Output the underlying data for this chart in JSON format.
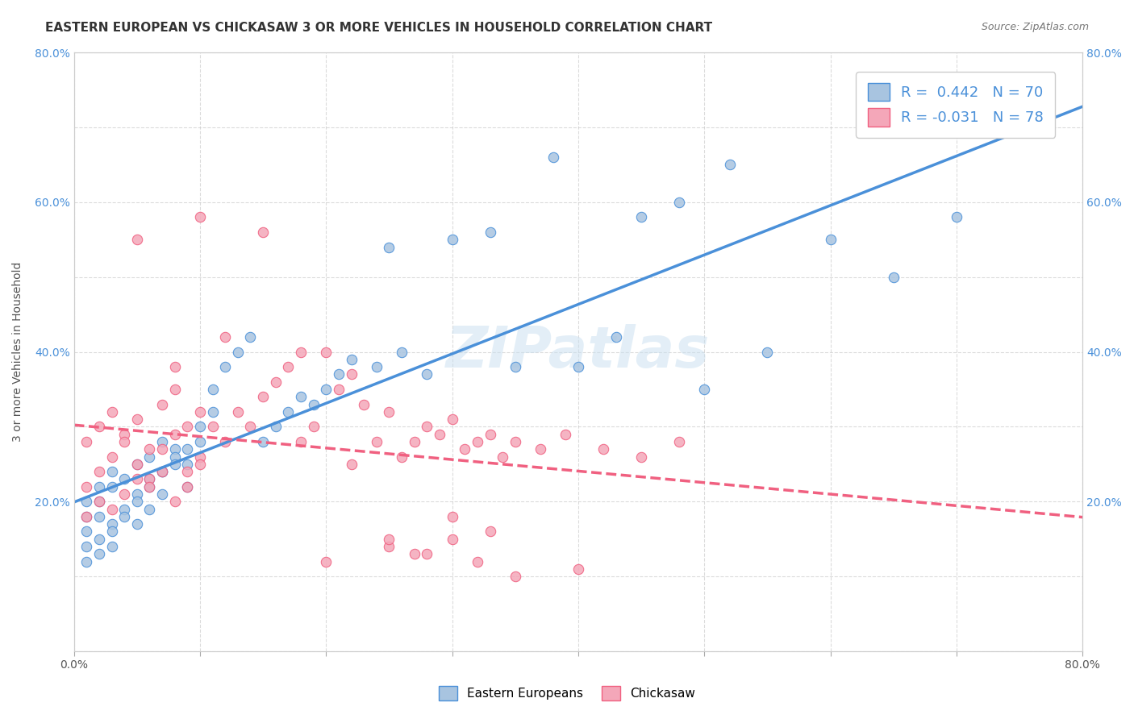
{
  "title": "EASTERN EUROPEAN VS CHICKASAW 3 OR MORE VEHICLES IN HOUSEHOLD CORRELATION CHART",
  "source": "Source: ZipAtlas.com",
  "ylabel": "3 or more Vehicles in Household",
  "watermark": "ZIPatlas",
  "legend_label1": "Eastern Europeans",
  "legend_label2": "Chickasaw",
  "R1": 0.442,
  "N1": 70,
  "R2": -0.031,
  "N2": 78,
  "xlim": [
    0.0,
    0.8
  ],
  "ylim": [
    0.0,
    0.8
  ],
  "xticks": [
    0.0,
    0.1,
    0.2,
    0.3,
    0.4,
    0.5,
    0.6,
    0.7,
    0.8
  ],
  "yticks": [
    0.0,
    0.1,
    0.2,
    0.3,
    0.4,
    0.5,
    0.6,
    0.7,
    0.8
  ],
  "xticklabels": [
    "0.0%",
    "",
    "",
    "",
    "",
    "",
    "",
    "",
    "80.0%"
  ],
  "yticklabels": [
    "",
    "",
    "20.0%",
    "",
    "40.0%",
    "",
    "60.0%",
    "",
    "80.0%"
  ],
  "color_blue": "#a8c4e0",
  "color_pink": "#f4a7b9",
  "line_color_blue": "#4a90d9",
  "line_color_pink": "#f06080",
  "background_color": "#ffffff",
  "grid_color": "#cccccc",
  "blue_scatter_x": [
    0.01,
    0.02,
    0.03,
    0.04,
    0.05,
    0.06,
    0.07,
    0.08,
    0.09,
    0.1,
    0.01,
    0.02,
    0.03,
    0.05,
    0.06,
    0.07,
    0.08,
    0.09,
    0.1,
    0.11,
    0.01,
    0.02,
    0.03,
    0.04,
    0.05,
    0.06,
    0.07,
    0.08,
    0.09,
    0.11,
    0.01,
    0.02,
    0.03,
    0.04,
    0.05,
    0.06,
    0.07,
    0.12,
    0.13,
    0.14,
    0.01,
    0.02,
    0.03,
    0.15,
    0.16,
    0.17,
    0.18,
    0.19,
    0.2,
    0.21,
    0.22,
    0.24,
    0.26,
    0.28,
    0.35,
    0.4,
    0.43,
    0.5,
    0.55,
    0.6,
    0.65,
    0.7,
    0.75,
    0.25,
    0.3,
    0.33,
    0.38,
    0.45,
    0.48,
    0.52
  ],
  "blue_scatter_y": [
    0.2,
    0.22,
    0.24,
    0.23,
    0.25,
    0.26,
    0.28,
    0.27,
    0.25,
    0.3,
    0.18,
    0.2,
    0.22,
    0.21,
    0.23,
    0.24,
    0.26,
    0.22,
    0.28,
    0.32,
    0.16,
    0.18,
    0.17,
    0.19,
    0.2,
    0.22,
    0.24,
    0.25,
    0.27,
    0.35,
    0.14,
    0.15,
    0.16,
    0.18,
    0.17,
    0.19,
    0.21,
    0.38,
    0.4,
    0.42,
    0.12,
    0.13,
    0.14,
    0.28,
    0.3,
    0.32,
    0.34,
    0.33,
    0.35,
    0.37,
    0.39,
    0.38,
    0.4,
    0.37,
    0.38,
    0.38,
    0.42,
    0.35,
    0.4,
    0.55,
    0.5,
    0.58,
    0.7,
    0.54,
    0.55,
    0.56,
    0.66,
    0.58,
    0.6,
    0.65
  ],
  "pink_scatter_x": [
    0.01,
    0.02,
    0.03,
    0.04,
    0.05,
    0.06,
    0.07,
    0.08,
    0.09,
    0.1,
    0.01,
    0.02,
    0.03,
    0.04,
    0.05,
    0.06,
    0.07,
    0.08,
    0.09,
    0.1,
    0.01,
    0.02,
    0.03,
    0.04,
    0.05,
    0.06,
    0.07,
    0.08,
    0.09,
    0.1,
    0.11,
    0.12,
    0.13,
    0.14,
    0.15,
    0.16,
    0.17,
    0.18,
    0.19,
    0.2,
    0.21,
    0.22,
    0.23,
    0.24,
    0.25,
    0.26,
    0.27,
    0.28,
    0.29,
    0.3,
    0.31,
    0.32,
    0.33,
    0.34,
    0.35,
    0.37,
    0.39,
    0.42,
    0.45,
    0.48,
    0.05,
    0.1,
    0.15,
    0.2,
    0.25,
    0.28,
    0.3,
    0.32,
    0.35,
    0.4,
    0.08,
    0.12,
    0.18,
    0.22,
    0.25,
    0.27,
    0.3,
    0.33
  ],
  "pink_scatter_y": [
    0.28,
    0.3,
    0.32,
    0.29,
    0.31,
    0.27,
    0.33,
    0.35,
    0.3,
    0.32,
    0.22,
    0.24,
    0.26,
    0.28,
    0.25,
    0.23,
    0.27,
    0.29,
    0.24,
    0.26,
    0.18,
    0.2,
    0.19,
    0.21,
    0.23,
    0.22,
    0.24,
    0.2,
    0.22,
    0.25,
    0.3,
    0.28,
    0.32,
    0.3,
    0.34,
    0.36,
    0.38,
    0.28,
    0.3,
    0.4,
    0.35,
    0.37,
    0.33,
    0.28,
    0.32,
    0.26,
    0.28,
    0.3,
    0.29,
    0.31,
    0.27,
    0.28,
    0.29,
    0.26,
    0.28,
    0.27,
    0.29,
    0.27,
    0.26,
    0.28,
    0.55,
    0.58,
    0.56,
    0.12,
    0.14,
    0.13,
    0.15,
    0.12,
    0.1,
    0.11,
    0.38,
    0.42,
    0.4,
    0.25,
    0.15,
    0.13,
    0.18,
    0.16
  ],
  "title_fontsize": 11,
  "axis_label_fontsize": 10,
  "tick_fontsize": 10,
  "legend_fontsize": 13
}
